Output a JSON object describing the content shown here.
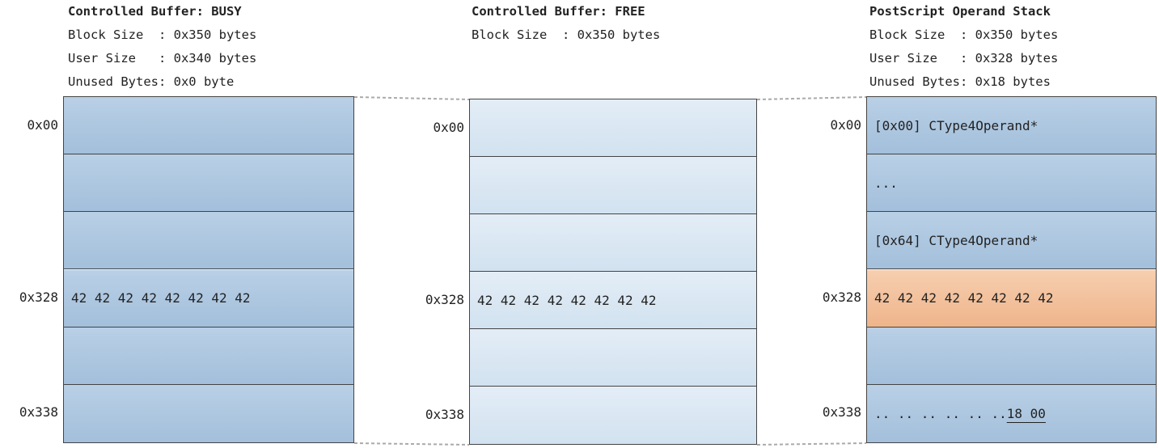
{
  "columns": [
    {
      "title": "Controlled Buffer: BUSY",
      "info": [
        "Block Size  : 0x350 bytes",
        "User Size   : 0x340 bytes",
        "Unused Bytes: 0x0 byte"
      ],
      "rows": [
        {
          "offset": "0x00"
        },
        {},
        {},
        {
          "offset": "0x328",
          "content": "42 42 42 42 42 42 42 42"
        },
        {},
        {
          "offset": "0x338"
        }
      ]
    },
    {
      "title": "Controlled Buffer: FREE",
      "info": [
        "Block Size  : 0x350 bytes"
      ],
      "rows": [
        {
          "offset": "0x00"
        },
        {},
        {},
        {
          "offset": "0x328",
          "content": "42 42 42 42 42 42 42 42"
        },
        {},
        {
          "offset": "0x338"
        }
      ]
    },
    {
      "title": "PostScript Operand Stack",
      "info": [
        "Block Size  : 0x350 bytes",
        "User Size   : 0x328 bytes",
        "Unused Bytes: 0x18 bytes"
      ],
      "rows": [
        {
          "offset": "0x00",
          "content": "[0x00] CType4Operand*"
        },
        {
          "content": "..."
        },
        {
          "content": "[0x64] CType4Operand*"
        },
        {
          "offset": "0x328",
          "content": "42 42 42 42 42 42 42 42"
        },
        {},
        {
          "offset": "0x338",
          "content": ".. .. .. .. .. ..",
          "underlined": "18 00"
        }
      ]
    }
  ]
}
